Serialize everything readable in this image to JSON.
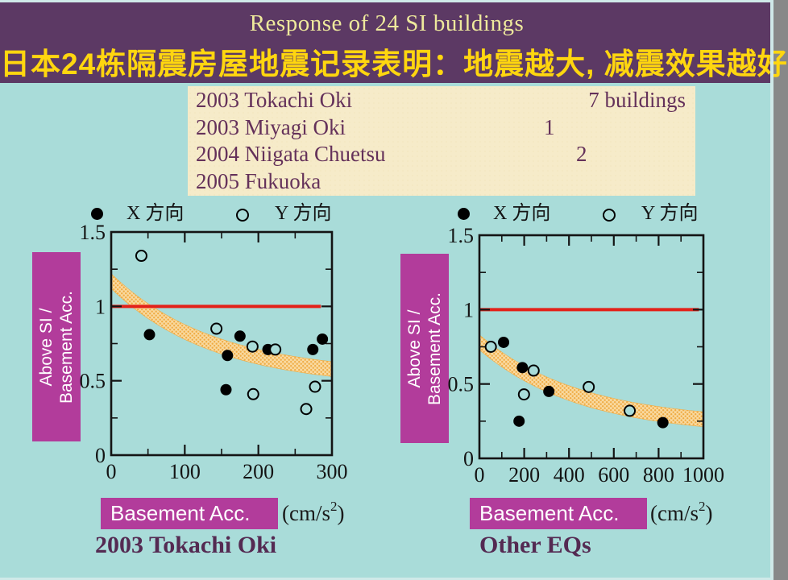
{
  "header": {
    "title_en": "Response of  24 SI buildings",
    "title_zh": "日本24栋隔震房屋地震记录表明：地震越大, 减震效果越好"
  },
  "eq_panel": {
    "rows": [
      {
        "label": "2003 Tokachi Oki",
        "value": "7 buildings"
      },
      {
        "label": "2003 Miyagi Oki",
        "value": "1"
      },
      {
        "label": "2004 Niigata Chuetsu",
        "value": "2"
      },
      {
        "label": "2005 Fukuoka",
        "value": ""
      }
    ]
  },
  "legend": {
    "x_series": "X 方向",
    "y_series": "Y 方向"
  },
  "y_axis_label": {
    "line1": "Above SI /",
    "line2": "Basement Acc."
  },
  "basement_box_label": "Basement Acc.",
  "units": {
    "pre": "(cm/s",
    "sup": "2",
    "post": ")"
  },
  "captions": {
    "left": "2003 Tokachi Oki",
    "right": "Other EQs"
  },
  "colors": {
    "background": "#a9dcd9",
    "header": "#5c3964",
    "title_en": "#eee99c",
    "title_zh": "#ffd60f",
    "panel": "#f6ebc9",
    "panel_text": "#64315a",
    "magenta": "#b23c9b",
    "ref_line": "#e32119",
    "band_dark": "#efab43",
    "band_light": "#f9d99f",
    "caption_text": "#542a52"
  },
  "chart_data": [
    {
      "type": "scatter",
      "title": "2003 Tokachi Oki",
      "xlabel": "Basement Acc. (cm/s2)",
      "ylabel": "Above SI / Basement Acc.",
      "xlim": [
        0,
        300
      ],
      "ylim": [
        0,
        1.5
      ],
      "xticks": [
        0,
        100,
        200,
        300
      ],
      "xminor": [
        50,
        150,
        250
      ],
      "yticks": [
        0,
        0.5,
        1,
        1.5
      ],
      "yminor": [
        0.25,
        0.75,
        1.25
      ],
      "grid": false,
      "ref_line": {
        "y": 1.0,
        "x_start": 0,
        "x_end": 285
      },
      "trend_band": {
        "model": "y = a + b*exp(-x/tau)",
        "a": 0.5,
        "b": 0.67,
        "tau": 140,
        "half_width": 0.05
      },
      "series": [
        {
          "name": "X 方向",
          "marker": "filled",
          "points": [
            [
              52,
              0.81
            ],
            [
              156,
              0.44
            ],
            [
              158,
              0.67
            ],
            [
              175,
              0.8
            ],
            [
              213,
              0.71
            ],
            [
              274,
              0.71
            ],
            [
              287,
              0.78
            ]
          ]
        },
        {
          "name": "Y 方向",
          "marker": "open",
          "points": [
            [
              41,
              1.34
            ],
            [
              143,
              0.85
            ],
            [
              192,
              0.73
            ],
            [
              193,
              0.41
            ],
            [
              223,
              0.71
            ],
            [
              265,
              0.31
            ],
            [
              277,
              0.46
            ]
          ]
        }
      ]
    },
    {
      "type": "scatter",
      "title": "Other EQs",
      "xlabel": "Basement Acc. (cm/s2)",
      "ylabel": "Above SI / Basement Acc.",
      "xlim": [
        0,
        1000
      ],
      "ylim": [
        0,
        1.5
      ],
      "xticks": [
        0,
        200,
        400,
        600,
        800,
        1000
      ],
      "xminor": [
        100,
        300,
        500,
        700,
        900
      ],
      "yticks": [
        0,
        0.5,
        1,
        1.5
      ],
      "yminor": [
        0.25,
        0.75,
        1.25
      ],
      "grid": false,
      "ref_line": {
        "y": 1.0,
        "x_start": 0,
        "x_end": 980
      },
      "trend_band": {
        "model": "y = a + b*exp(-x/tau)",
        "a": 0.2,
        "b": 0.58,
        "tau": 450,
        "half_width": 0.05
      },
      "series": [
        {
          "name": "X 方向",
          "marker": "filled",
          "points": [
            [
              108,
              0.78
            ],
            [
              177,
              0.25
            ],
            [
              192,
              0.61
            ],
            [
              310,
              0.45
            ],
            [
              819,
              0.24
            ]
          ]
        },
        {
          "name": "Y 方向",
          "marker": "open",
          "points": [
            [
              51,
              0.75
            ],
            [
              199,
              0.43
            ],
            [
              242,
              0.59
            ],
            [
              488,
              0.48
            ],
            [
              671,
              0.32
            ]
          ]
        }
      ]
    }
  ]
}
